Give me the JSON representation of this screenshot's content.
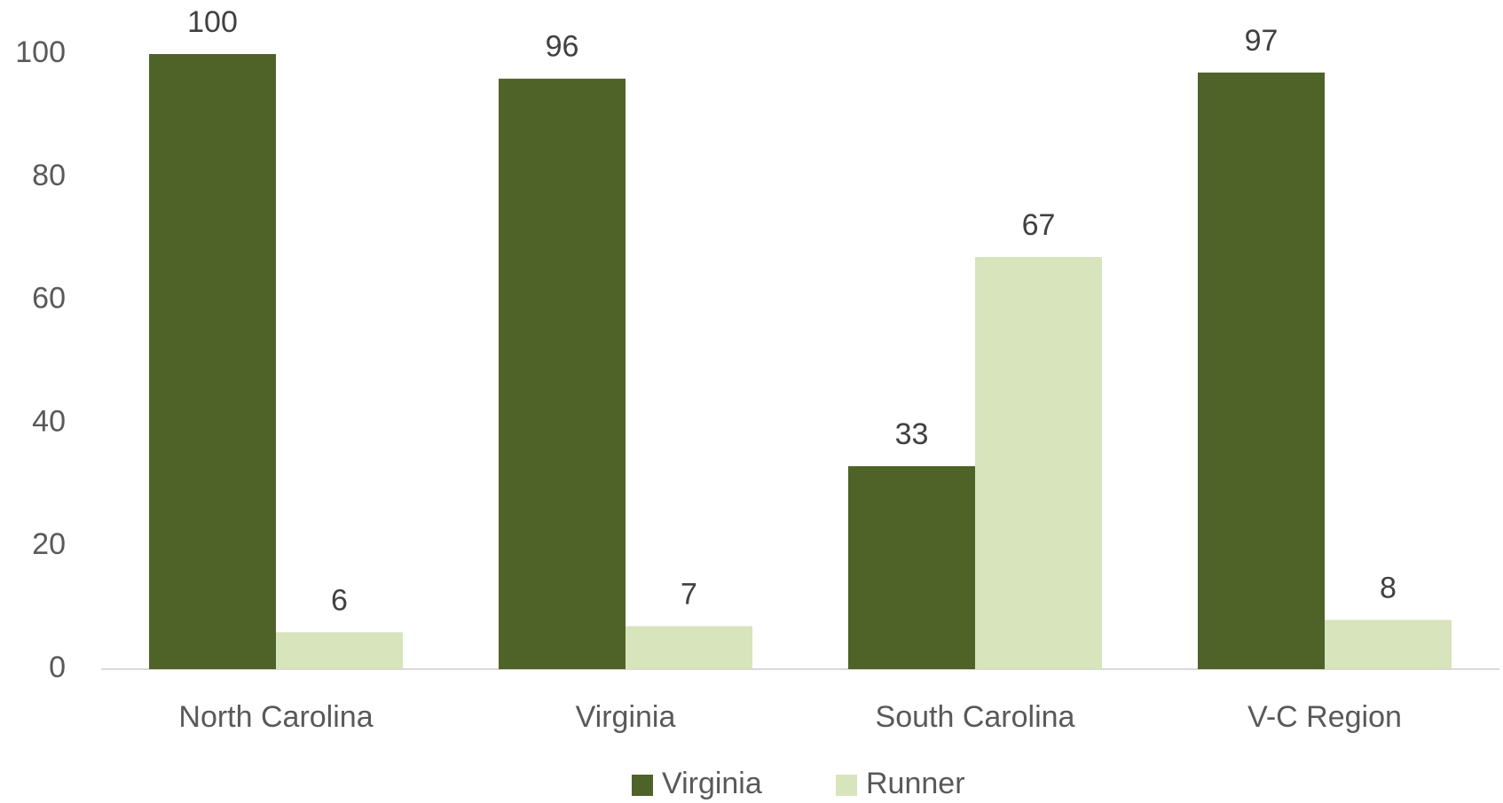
{
  "chart_data": {
    "type": "bar",
    "categories": [
      "North Carolina",
      "Virginia",
      "South Carolina",
      "V-C Region"
    ],
    "series": [
      {
        "name": "Virginia",
        "color": "#4f6228",
        "values": [
          100,
          96,
          33,
          97
        ]
      },
      {
        "name": "Runner",
        "color": "#d7e4bc",
        "values": [
          6,
          7,
          67,
          8
        ]
      }
    ],
    "ylim": [
      0,
      100
    ],
    "yticks": [
      0,
      20,
      40,
      60,
      80,
      100
    ],
    "grid": false,
    "legend": "bottom"
  }
}
